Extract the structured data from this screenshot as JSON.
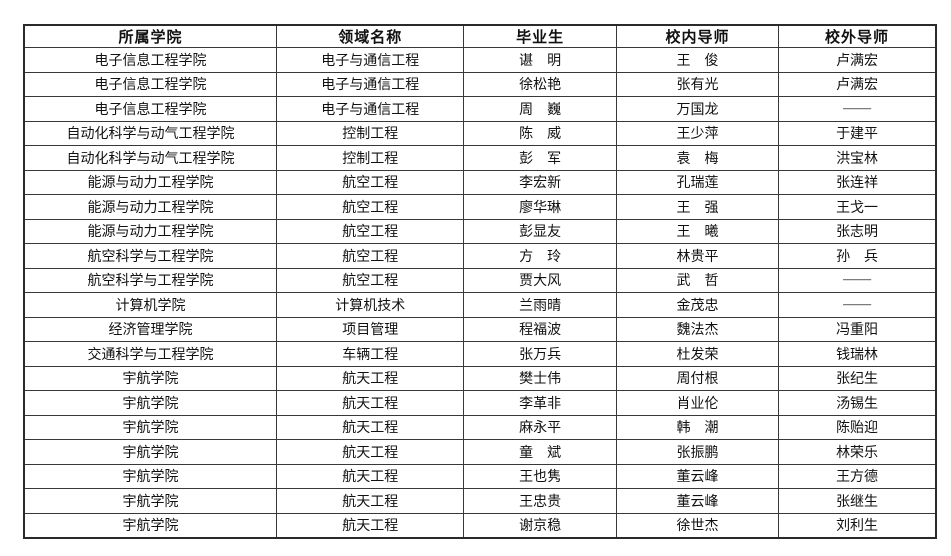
{
  "colors": {
    "background": "#ffffff",
    "border_outer": "#2a2a2a",
    "border_inner": "#383838",
    "text": "#111111"
  },
  "table": {
    "columns": [
      {
        "key": "college",
        "label": "所属学院"
      },
      {
        "key": "field",
        "label": "领域名称"
      },
      {
        "key": "graduate",
        "label": "毕业生"
      },
      {
        "key": "internal_mentor",
        "label": "校内导师"
      },
      {
        "key": "external_mentor",
        "label": "校外导师"
      }
    ],
    "rows": [
      [
        "电子信息工程学院",
        "电子与通信工程",
        "谌　明",
        "王　俊",
        "卢满宏"
      ],
      [
        "电子信息工程学院",
        "电子与通信工程",
        "徐松艳",
        "张有光",
        "卢满宏"
      ],
      [
        "电子信息工程学院",
        "电子与通信工程",
        "周　巍",
        "万国龙",
        "——"
      ],
      [
        "自动化科学与动气工程学院",
        "控制工程",
        "陈　威",
        "王少萍",
        "于建平"
      ],
      [
        "自动化科学与动气工程学院",
        "控制工程",
        "彭　军",
        "袁　梅",
        "洪宝林"
      ],
      [
        "能源与动力工程学院",
        "航空工程",
        "李宏新",
        "孔瑞莲",
        "张连祥"
      ],
      [
        "能源与动力工程学院",
        "航空工程",
        "廖华琳",
        "王　强",
        "王戈一"
      ],
      [
        "能源与动力工程学院",
        "航空工程",
        "彭显友",
        "王　曦",
        "张志明"
      ],
      [
        "航空科学与工程学院",
        "航空工程",
        "方　玲",
        "林贵平",
        "孙　兵"
      ],
      [
        "航空科学与工程学院",
        "航空工程",
        "贾大风",
        "武　哲",
        "——"
      ],
      [
        "计算机学院",
        "计算机技术",
        "兰雨晴",
        "金茂忠",
        "——"
      ],
      [
        "经济管理学院",
        "项目管理",
        "程福波",
        "魏法杰",
        "冯重阳"
      ],
      [
        "交通科学与工程学院",
        "车辆工程",
        "张万兵",
        "杜发荣",
        "钱瑞林"
      ],
      [
        "宇航学院",
        "航天工程",
        "樊士伟",
        "周付根",
        "张纪生"
      ],
      [
        "宇航学院",
        "航天工程",
        "李革非",
        "肖业伦",
        "汤锡生"
      ],
      [
        "宇航学院",
        "航天工程",
        "麻永平",
        "韩　潮",
        "陈贻迎"
      ],
      [
        "宇航学院",
        "航天工程",
        "童　斌",
        "张振鹏",
        "林荣乐"
      ],
      [
        "宇航学院",
        "航天工程",
        "王也隽",
        "董云峰",
        "王方德"
      ],
      [
        "宇航学院",
        "航天工程",
        "王忠贵",
        "董云峰",
        "张继生"
      ],
      [
        "宇航学院",
        "航天工程",
        "谢京稳",
        "徐世杰",
        "刘利生"
      ]
    ]
  }
}
